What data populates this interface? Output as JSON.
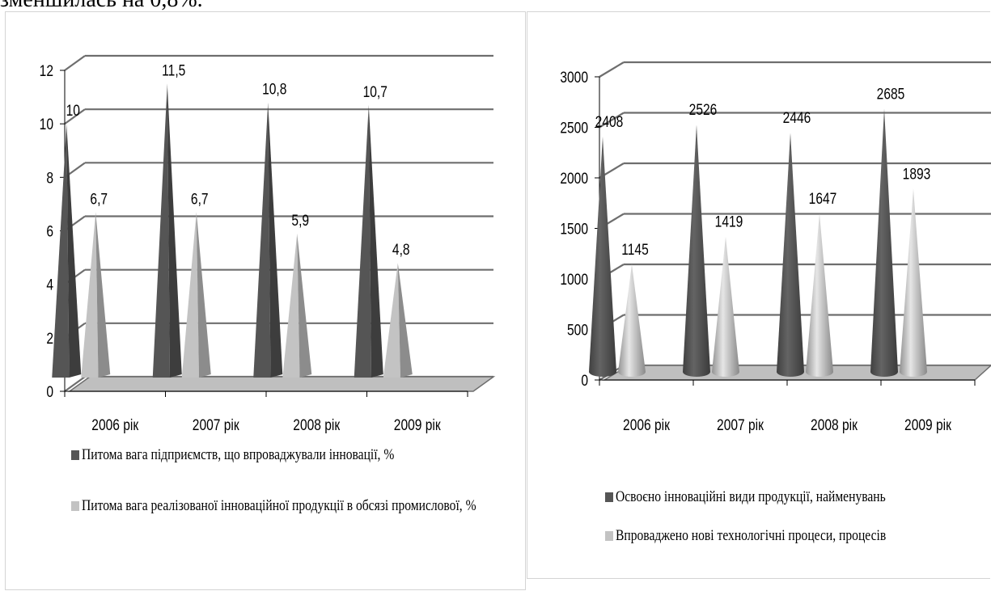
{
  "page": {
    "top_text": "зменшилась на 0,8%."
  },
  "colors": {
    "dark_series": "#555555",
    "light_series": "#c3c3c3",
    "grid": "#6e6e6e",
    "floor": "#bfbfbf"
  },
  "chart_data": [
    {
      "type": "bar",
      "shape": "pyramid",
      "title": "",
      "xlabel": "",
      "ylabel": "",
      "categories": [
        "2006 рік",
        "2007 рік",
        "2008 рік",
        "2009 рік"
      ],
      "series": [
        {
          "name": "Питома вага підприємств, що впроваджували інновації, %",
          "values": [
            10,
            11.5,
            10.8,
            10.7
          ]
        },
        {
          "name": "Питома вага реалізованої інноваційної продукції в обсязі промислової, %",
          "values": [
            6.7,
            6.7,
            5.9,
            4.8
          ]
        }
      ],
      "value_labels": [
        [
          "10",
          "11,5",
          "10,8",
          "10,7"
        ],
        [
          "6,7",
          "6,7",
          "5,9",
          "4,8"
        ]
      ],
      "yticks": [
        "0",
        "2",
        "4",
        "6",
        "8",
        "10",
        "12"
      ],
      "ylim": [
        0,
        12
      ],
      "grid": true,
      "legend": "bottom"
    },
    {
      "type": "bar",
      "shape": "cone",
      "title": "",
      "xlabel": "",
      "ylabel": "",
      "categories": [
        "2006 рік",
        "2007 рік",
        "2008 рік",
        "2009 рік"
      ],
      "series": [
        {
          "name": "Освоєно інноваційні види продукції, найменувань",
          "values": [
            2408,
            2526,
            2446,
            2685
          ]
        },
        {
          "name": "Впроваджено нові технологічні процеси, процесів",
          "values": [
            1145,
            1419,
            1647,
            1893
          ]
        }
      ],
      "value_labels": [
        [
          "2408",
          "2526",
          "2446",
          "2685"
        ],
        [
          "1145",
          "1419",
          "1647",
          "1893"
        ]
      ],
      "yticks": [
        "0",
        "500",
        "1000",
        "1500",
        "2000",
        "2500",
        "3000"
      ],
      "ylim": [
        0,
        3000
      ],
      "grid": true,
      "legend": "bottom"
    }
  ]
}
